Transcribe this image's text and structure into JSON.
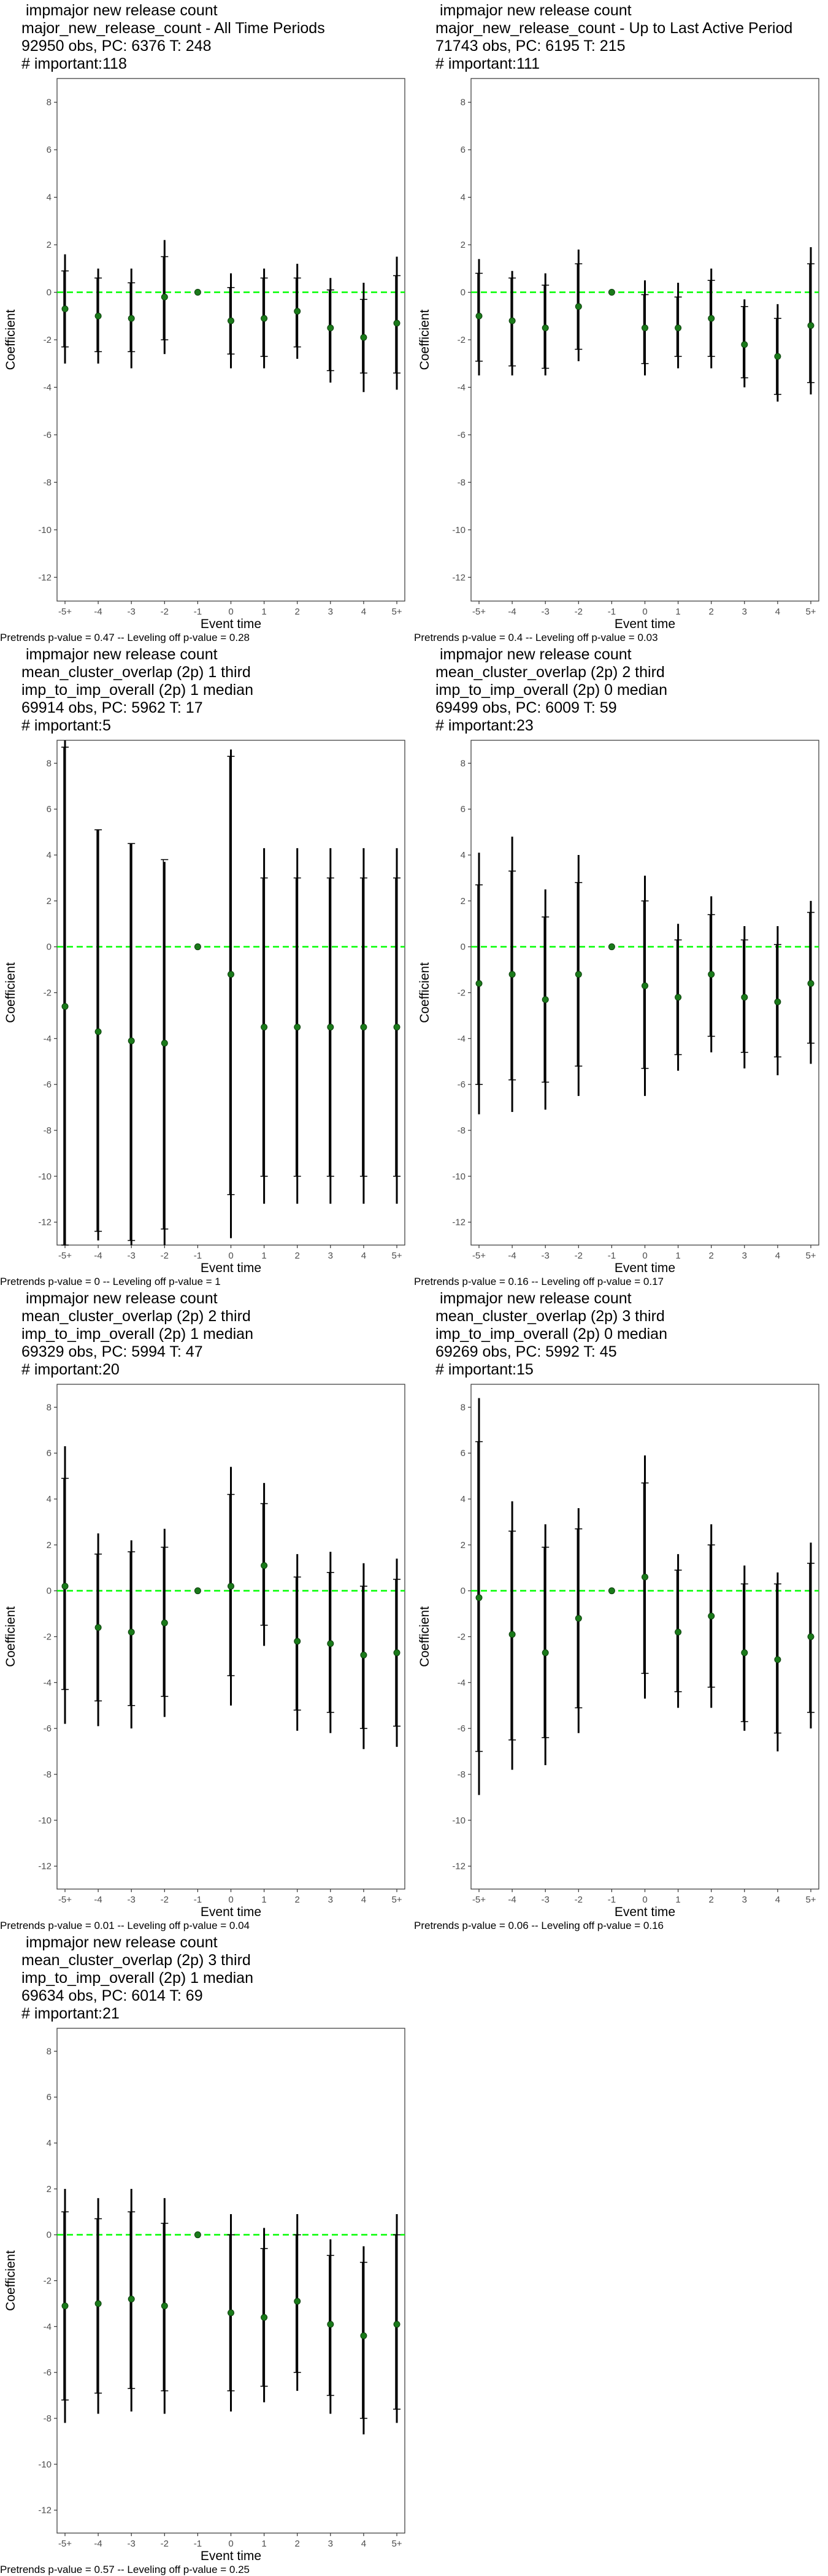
{
  "axis": {
    "ylabel": "Coefficient",
    "xlabel": "Event time",
    "x_ticks": [
      "-5+",
      "-4",
      "-3",
      "-2",
      "-1",
      "0",
      "1",
      "2",
      "3",
      "4",
      "5+"
    ],
    "y_ticks": [
      8,
      6,
      4,
      2,
      0,
      -2,
      -4,
      -6,
      -8,
      -10,
      -12
    ]
  },
  "colors": {
    "point": "#1a7a1a",
    "zero_line": "#00ff00",
    "bars": "#000000"
  },
  "chart_data": [
    {
      "type": "scatter",
      "title_lines": [
        " impmajor new release count",
        "major_new_release_count - All Time Periods",
        "92950 obs, PC: 6376 T: 248",
        "# important:118"
      ],
      "categories": [
        "-5+",
        "-4",
        "-3",
        "-2",
        "-1",
        "0",
        "1",
        "2",
        "3",
        "4",
        "5+"
      ],
      "values": [
        -0.7,
        -1.0,
        -1.1,
        -0.2,
        0.0,
        -1.2,
        -1.1,
        -0.8,
        -1.5,
        -1.9,
        -1.3
      ],
      "ci95": [
        [
          -3.0,
          1.6
        ],
        [
          -3.0,
          1.0
        ],
        [
          -3.2,
          1.0
        ],
        [
          -2.6,
          2.2
        ],
        [
          0.0,
          0.0
        ],
        [
          -3.2,
          0.8
        ],
        [
          -3.2,
          1.0
        ],
        [
          -2.8,
          1.2
        ],
        [
          -3.8,
          0.6
        ],
        [
          -4.2,
          0.4
        ],
        [
          -4.1,
          1.5
        ]
      ],
      "ci90": [
        [
          -2.3,
          0.9
        ],
        [
          -2.5,
          0.6
        ],
        [
          -2.5,
          0.4
        ],
        [
          -2.0,
          1.5
        ],
        [
          0.0,
          0.0
        ],
        [
          -2.6,
          0.2
        ],
        [
          -2.7,
          0.6
        ],
        [
          -2.3,
          0.6
        ],
        [
          -3.3,
          0.1
        ],
        [
          -3.4,
          -0.3
        ],
        [
          -3.4,
          0.7
        ]
      ],
      "ylim": [
        -13,
        9
      ],
      "footnote": "Pretrends p-value = 0.47 -- Leveling off p-value = 0.28"
    },
    {
      "type": "scatter",
      "title_lines": [
        " impmajor new release count",
        "major_new_release_count - Up to Last Active Period",
        "71743 obs, PC: 6195 T: 215",
        "# important:111"
      ],
      "categories": [
        "-5+",
        "-4",
        "-3",
        "-2",
        "-1",
        "0",
        "1",
        "2",
        "3",
        "4",
        "5+"
      ],
      "values": [
        -1.0,
        -1.2,
        -1.5,
        -0.6,
        0.0,
        -1.5,
        -1.5,
        -1.1,
        -2.2,
        -2.7,
        -1.4
      ],
      "ci95": [
        [
          -3.5,
          1.4
        ],
        [
          -3.5,
          0.9
        ],
        [
          -3.5,
          0.8
        ],
        [
          -2.9,
          1.8
        ],
        [
          0.0,
          0.0
        ],
        [
          -3.5,
          0.5
        ],
        [
          -3.2,
          0.4
        ],
        [
          -3.2,
          1.0
        ],
        [
          -4.0,
          -0.3
        ],
        [
          -4.6,
          -0.5
        ],
        [
          -4.3,
          1.9
        ]
      ],
      "ci90": [
        [
          -2.9,
          0.8
        ],
        [
          -3.1,
          0.6
        ],
        [
          -3.2,
          0.3
        ],
        [
          -2.4,
          1.2
        ],
        [
          0.0,
          0.0
        ],
        [
          -3.0,
          -0.1
        ],
        [
          -2.7,
          -0.2
        ],
        [
          -2.7,
          0.5
        ],
        [
          -3.6,
          -0.6
        ],
        [
          -4.3,
          -1.1
        ],
        [
          -3.8,
          1.2
        ]
      ],
      "ylim": [
        -13,
        9
      ],
      "footnote": "Pretrends p-value = 0.4 -- Leveling off p-value = 0.03"
    },
    {
      "type": "scatter",
      "title_lines": [
        " impmajor new release count",
        "mean_cluster_overlap (2p) 1 third",
        "imp_to_imp_overall (2p) 1 median",
        "69914 obs, PC: 5962 T: 17",
        "# important:5"
      ],
      "categories": [
        "-5+",
        "-4",
        "-3",
        "-2",
        "-1",
        "0",
        "1",
        "2",
        "3",
        "4",
        "5+"
      ],
      "values": [
        -2.6,
        -3.7,
        -4.1,
        -4.2,
        0.0,
        -1.2,
        -3.5,
        -3.5,
        -3.5,
        -3.5,
        -3.5
      ],
      "ci95": [
        [
          -13.0,
          9.0
        ],
        [
          -12.8,
          5.1
        ],
        [
          -13.0,
          4.5
        ],
        [
          -13.0,
          3.7
        ],
        [
          0.0,
          0.0
        ],
        [
          -12.7,
          8.6
        ],
        [
          -11.2,
          4.3
        ],
        [
          -11.2,
          4.3
        ],
        [
          -11.2,
          4.3
        ],
        [
          -11.2,
          4.3
        ],
        [
          -11.2,
          4.3
        ]
      ],
      "ci90": [
        [
          -13.0,
          8.7
        ],
        [
          -12.4,
          5.1
        ],
        [
          -12.8,
          4.5
        ],
        [
          -12.3,
          3.8
        ],
        [
          0.0,
          0.0
        ],
        [
          -10.8,
          8.3
        ],
        [
          -10.0,
          3.0
        ],
        [
          -10.0,
          3.0
        ],
        [
          -10.0,
          3.0
        ],
        [
          -10.0,
          3.0
        ],
        [
          -10.0,
          3.0
        ]
      ],
      "ylim": [
        -13,
        9
      ],
      "footnote": "Pretrends p-value = 0 -- Leveling off p-value = 1"
    },
    {
      "type": "scatter",
      "title_lines": [
        " impmajor new release count",
        "mean_cluster_overlap (2p) 2 third",
        "imp_to_imp_overall (2p) 0 median",
        "69499 obs, PC: 6009 T: 59",
        "# important:23"
      ],
      "categories": [
        "-5+",
        "-4",
        "-3",
        "-2",
        "-1",
        "0",
        "1",
        "2",
        "3",
        "4",
        "5+"
      ],
      "values": [
        -1.6,
        -1.2,
        -2.3,
        -1.2,
        0.0,
        -1.7,
        -2.2,
        -1.2,
        -2.2,
        -2.4,
        -1.6
      ],
      "ci95": [
        [
          -7.3,
          4.1
        ],
        [
          -7.2,
          4.8
        ],
        [
          -7.1,
          2.5
        ],
        [
          -6.5,
          4.0
        ],
        [
          0.0,
          0.0
        ],
        [
          -6.5,
          3.1
        ],
        [
          -5.4,
          1.0
        ],
        [
          -4.6,
          2.2
        ],
        [
          -5.3,
          0.9
        ],
        [
          -5.6,
          0.9
        ],
        [
          -5.1,
          2.0
        ]
      ],
      "ci90": [
        [
          -6.0,
          2.7
        ],
        [
          -5.8,
          3.3
        ],
        [
          -5.9,
          1.3
        ],
        [
          -5.2,
          2.8
        ],
        [
          0.0,
          0.0
        ],
        [
          -5.3,
          2.0
        ],
        [
          -4.7,
          0.3
        ],
        [
          -3.9,
          1.4
        ],
        [
          -4.6,
          0.3
        ],
        [
          -4.8,
          0.1
        ],
        [
          -4.2,
          1.5
        ]
      ],
      "ylim": [
        -13,
        9
      ],
      "footnote": "Pretrends p-value = 0.16 -- Leveling off p-value = 0.17"
    },
    {
      "type": "scatter",
      "title_lines": [
        " impmajor new release count",
        "mean_cluster_overlap (2p) 2 third",
        "imp_to_imp_overall (2p) 1 median",
        "69329 obs, PC: 5994 T: 47",
        "# important:20"
      ],
      "categories": [
        "-5+",
        "-4",
        "-3",
        "-2",
        "-1",
        "0",
        "1",
        "2",
        "3",
        "4",
        "5+"
      ],
      "values": [
        0.2,
        -1.6,
        -1.8,
        -1.4,
        0.0,
        0.2,
        1.1,
        -2.2,
        -2.3,
        -2.8,
        -2.7
      ],
      "ci95": [
        [
          -5.8,
          6.3
        ],
        [
          -5.9,
          2.5
        ],
        [
          -6.0,
          2.2
        ],
        [
          -5.5,
          2.7
        ],
        [
          0.0,
          0.0
        ],
        [
          -5.0,
          5.4
        ],
        [
          -2.4,
          4.7
        ],
        [
          -6.1,
          1.6
        ],
        [
          -6.2,
          1.7
        ],
        [
          -6.9,
          1.2
        ],
        [
          -6.8,
          1.4
        ]
      ],
      "ci90": [
        [
          -4.3,
          4.9
        ],
        [
          -4.8,
          1.6
        ],
        [
          -5.0,
          1.7
        ],
        [
          -4.6,
          1.9
        ],
        [
          0.0,
          0.0
        ],
        [
          -3.7,
          4.2
        ],
        [
          -1.5,
          3.8
        ],
        [
          -5.2,
          0.6
        ],
        [
          -5.3,
          0.8
        ],
        [
          -6.0,
          0.2
        ],
        [
          -5.9,
          0.5
        ]
      ],
      "ylim": [
        -13,
        9
      ],
      "footnote": "Pretrends p-value = 0.01 -- Leveling off p-value = 0.04"
    },
    {
      "type": "scatter",
      "title_lines": [
        " impmajor new release count",
        "mean_cluster_overlap (2p) 3 third",
        "imp_to_imp_overall (2p) 0 median",
        "69269 obs, PC: 5992 T: 45",
        "# important:15"
      ],
      "categories": [
        "-5+",
        "-4",
        "-3",
        "-2",
        "-1",
        "0",
        "1",
        "2",
        "3",
        "4",
        "5+"
      ],
      "values": [
        -0.3,
        -1.9,
        -2.7,
        -1.2,
        0.0,
        0.6,
        -1.8,
        -1.1,
        -2.7,
        -3.0,
        -2.0
      ],
      "ci95": [
        [
          -8.9,
          8.4
        ],
        [
          -7.8,
          3.9
        ],
        [
          -7.6,
          2.9
        ],
        [
          -6.2,
          3.6
        ],
        [
          0.0,
          0.0
        ],
        [
          -4.7,
          5.9
        ],
        [
          -5.1,
          1.6
        ],
        [
          -5.1,
          2.9
        ],
        [
          -6.1,
          1.1
        ],
        [
          -7.0,
          0.8
        ],
        [
          -6.0,
          2.1
        ]
      ],
      "ci90": [
        [
          -7.0,
          6.5
        ],
        [
          -6.5,
          2.6
        ],
        [
          -6.4,
          1.9
        ],
        [
          -5.1,
          2.7
        ],
        [
          0.0,
          0.0
        ],
        [
          -3.6,
          4.7
        ],
        [
          -4.4,
          0.9
        ],
        [
          -4.2,
          2.0
        ],
        [
          -5.7,
          0.3
        ],
        [
          -6.2,
          0.3
        ],
        [
          -5.3,
          1.2
        ]
      ],
      "ylim": [
        -13,
        9
      ],
      "footnote": "Pretrends p-value = 0.06 -- Leveling off p-value = 0.16"
    },
    {
      "type": "scatter",
      "title_lines": [
        " impmajor new release count",
        "mean_cluster_overlap (2p) 3 third",
        "imp_to_imp_overall (2p) 1 median",
        "69634 obs, PC: 6014 T: 69",
        "# important:21"
      ],
      "categories": [
        "-5+",
        "-4",
        "-3",
        "-2",
        "-1",
        "0",
        "1",
        "2",
        "3",
        "4",
        "5+"
      ],
      "values": [
        -3.1,
        -3.0,
        -2.8,
        -3.1,
        0.0,
        -3.4,
        -3.6,
        -2.9,
        -3.9,
        -4.4,
        -3.9
      ],
      "ci95": [
        [
          -8.2,
          2.0
        ],
        [
          -7.8,
          1.6
        ],
        [
          -7.7,
          2.0
        ],
        [
          -7.8,
          1.6
        ],
        [
          0.0,
          0.0
        ],
        [
          -7.7,
          0.9
        ],
        [
          -7.3,
          0.3
        ],
        [
          -6.8,
          0.9
        ],
        [
          -7.8,
          -0.2
        ],
        [
          -8.7,
          -0.5
        ],
        [
          -8.2,
          0.9
        ]
      ],
      "ci90": [
        [
          -7.2,
          1.0
        ],
        [
          -6.9,
          0.7
        ],
        [
          -6.7,
          1.0
        ],
        [
          -6.8,
          0.5
        ],
        [
          0.0,
          0.0
        ],
        [
          -6.8,
          0.0
        ],
        [
          -6.6,
          -0.6
        ],
        [
          -6.0,
          0.0
        ],
        [
          -7.0,
          -0.9
        ],
        [
          -8.0,
          -1.2
        ],
        [
          -7.6,
          0.0
        ]
      ],
      "ylim": [
        -13,
        9
      ],
      "footnote": "Pretrends p-value = 0.57 -- Leveling off p-value = 0.25"
    }
  ]
}
